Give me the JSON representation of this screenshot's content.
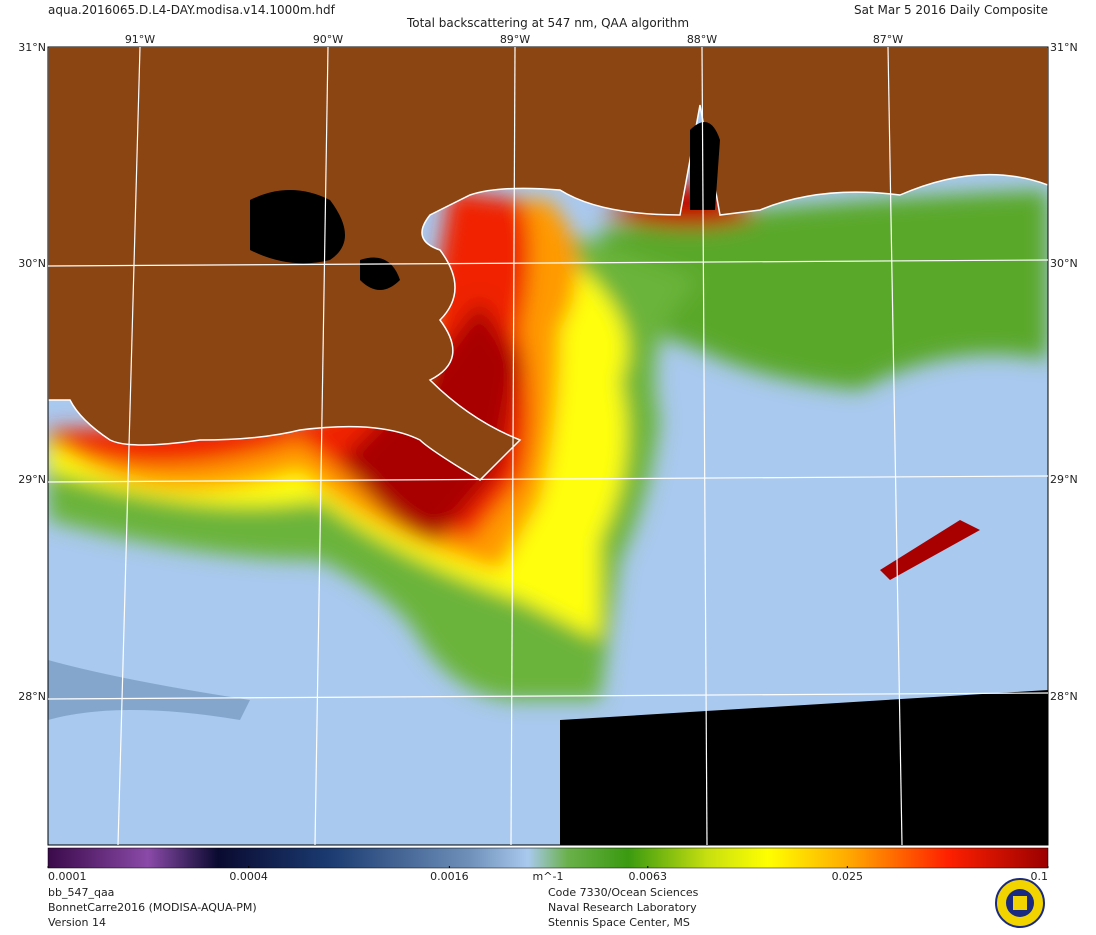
{
  "header": {
    "file": "aqua.2016065.D.L4-DAY.modisa.v14.1000m.hdf",
    "title": "Total backscattering at 547 nm, QAA algorithm",
    "date": "Sat Mar  5 2016 Daily Composite"
  },
  "map": {
    "latitudes": [
      "31°N",
      "30°N",
      "29°N",
      "28°N"
    ],
    "longitudes": [
      "91°W",
      "90°W",
      "89°W",
      "88°W",
      "87°W"
    ]
  },
  "colorbar": {
    "range": [
      0.0001,
      0.1
    ],
    "log": true,
    "ticks": [
      0.0001,
      0.0004,
      0.0016,
      0.0063,
      0.025,
      0.1
    ],
    "unit": "m^-1"
  },
  "footer": {
    "left": [
      "bb_547_qaa",
      "BonnetCarre2016 (MODISA-AQUA-PM)",
      "Version 14"
    ],
    "right": [
      "Code 7330/Ocean Sciences",
      "Naval Research Laboratory",
      "Stennis Space Center, MS"
    ]
  }
}
